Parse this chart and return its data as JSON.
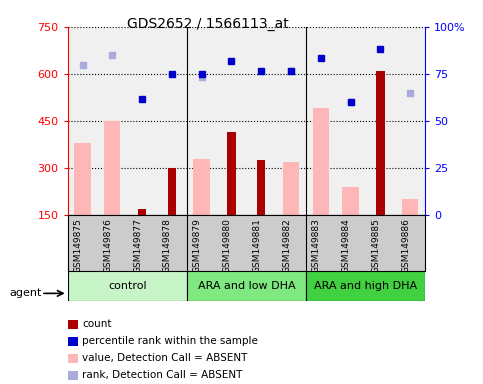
{
  "title": "GDS2652 / 1566113_at",
  "samples": [
    "GSM149875",
    "GSM149876",
    "GSM149877",
    "GSM149878",
    "GSM149879",
    "GSM149880",
    "GSM149881",
    "GSM149882",
    "GSM149883",
    "GSM149884",
    "GSM149885",
    "GSM149886"
  ],
  "groups": [
    {
      "label": "control",
      "start": 0,
      "end": 3,
      "color": "#c8f5c8"
    },
    {
      "label": "ARA and low DHA",
      "start": 4,
      "end": 7,
      "color": "#80e880"
    },
    {
      "label": "ARA and high DHA",
      "start": 8,
      "end": 11,
      "color": "#40d040"
    }
  ],
  "count_values": [
    null,
    null,
    170,
    300,
    null,
    415,
    325,
    null,
    null,
    null,
    610,
    null
  ],
  "percentile_rank_values": [
    null,
    null,
    520,
    600,
    600,
    640,
    610,
    610,
    650,
    510,
    680,
    null
  ],
  "value_absent": [
    380,
    450,
    null,
    null,
    330,
    null,
    null,
    320,
    490,
    240,
    null,
    200
  ],
  "rank_absent": [
    630,
    660,
    null,
    null,
    590,
    null,
    null,
    610,
    null,
    510,
    null,
    540
  ],
  "ylim_left": [
    150,
    750
  ],
  "ylim_right": [
    0,
    100
  ],
  "left_ticks": [
    150,
    300,
    450,
    600,
    750
  ],
  "right_ticks": [
    0,
    25,
    50,
    75,
    100
  ],
  "right_tick_labels": [
    "0",
    "25",
    "50",
    "75",
    "100%"
  ],
  "bar_color_count": "#aa0000",
  "bar_color_absent": "#ffb6b6",
  "dot_color_rank": "#0000cc",
  "dot_color_rank_absent": "#aaaadd",
  "background_plot": "#f0f0f0",
  "background_label": "#cccccc"
}
